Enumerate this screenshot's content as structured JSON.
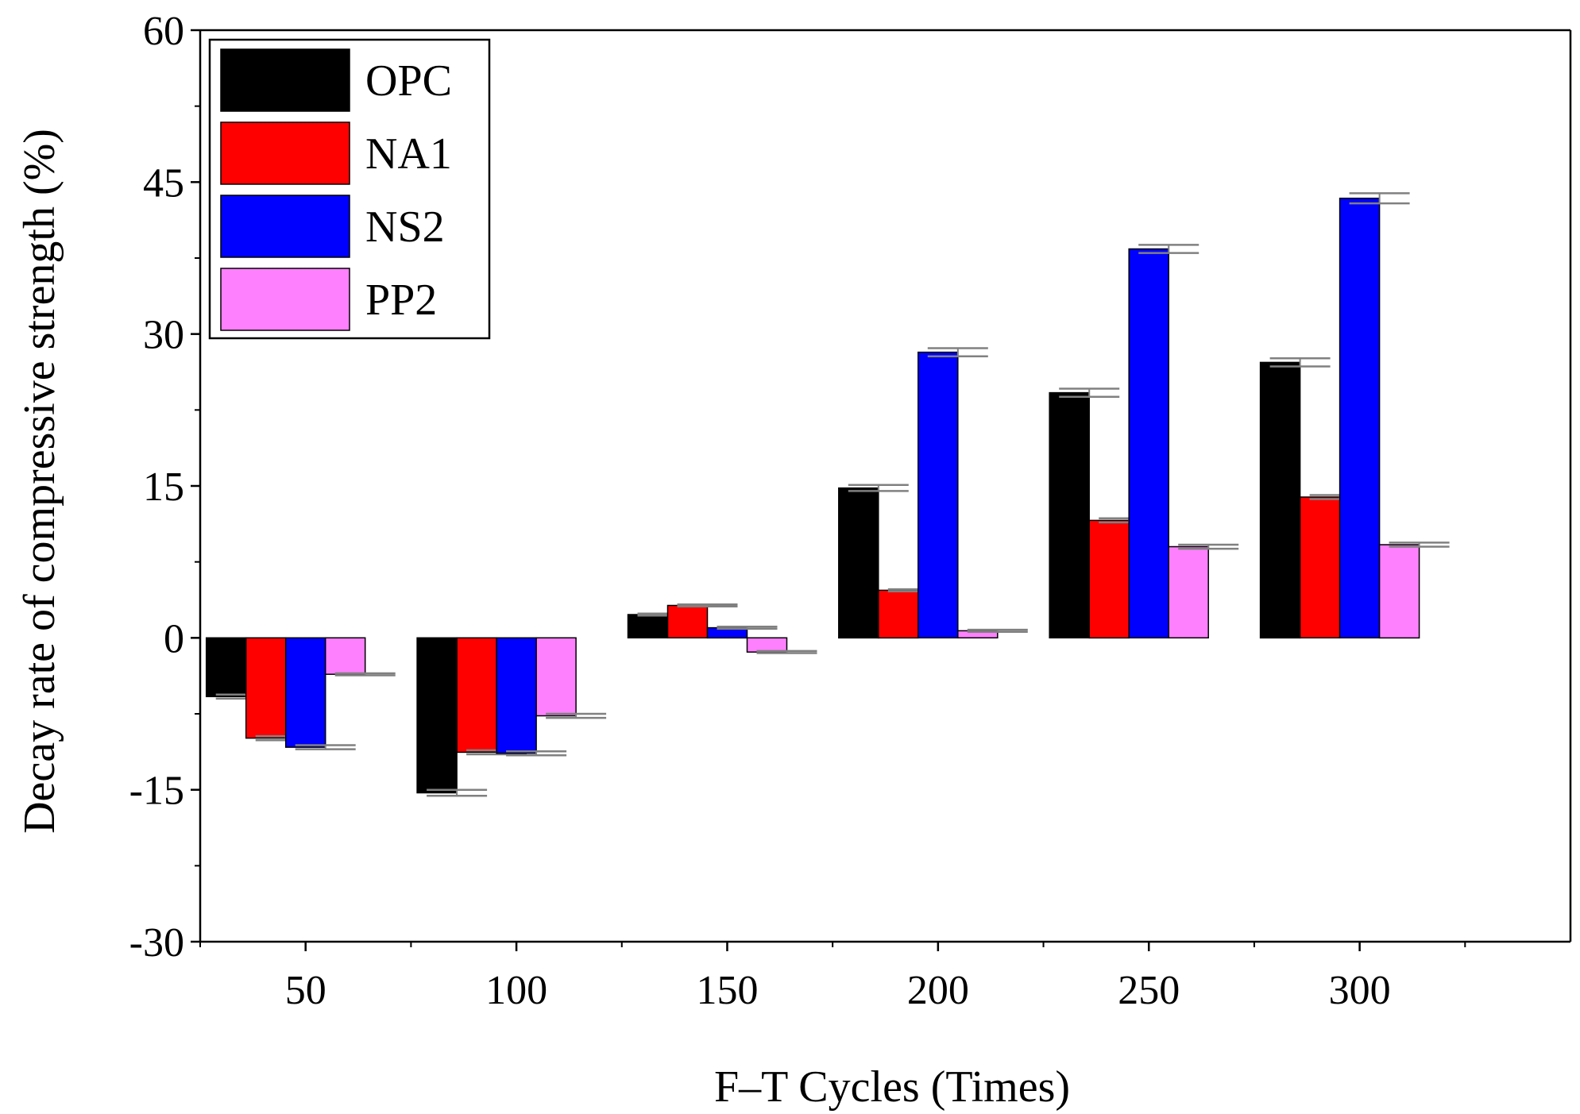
{
  "chart_data": {
    "type": "bar",
    "xlabel": "F–T Cycles (Times)",
    "ylabel": "Decay rate of compressive strength (%)",
    "ylim": [
      -30,
      60
    ],
    "yticks": [
      -30,
      -15,
      0,
      15,
      30,
      45,
      60
    ],
    "categories": [
      "50",
      "100",
      "150",
      "200",
      "250",
      "300"
    ],
    "legend_position": "top-left",
    "grid": false,
    "series": [
      {
        "name": "OPC",
        "color": "#000000",
        "values": [
          -5.8,
          -15.3,
          2.3,
          14.8,
          24.2,
          27.2
        ],
        "errors": [
          0.2,
          0.3,
          0.1,
          0.3,
          0.4,
          0.4
        ]
      },
      {
        "name": "NA1",
        "color": "#ff0000",
        "values": [
          -9.9,
          -11.3,
          3.2,
          4.7,
          11.6,
          13.9
        ],
        "errors": [
          0.2,
          0.2,
          0.1,
          0.1,
          0.2,
          0.2
        ]
      },
      {
        "name": "NS2",
        "color": "#0000ff",
        "values": [
          -10.8,
          -11.4,
          1.0,
          28.2,
          38.4,
          43.4
        ],
        "errors": [
          0.2,
          0.2,
          0.1,
          0.4,
          0.4,
          0.5
        ]
      },
      {
        "name": "PP2",
        "color": "#ff80ff",
        "values": [
          -3.6,
          -7.7,
          -1.4,
          0.7,
          9.0,
          9.2
        ],
        "errors": [
          0.1,
          0.2,
          0.1,
          0.1,
          0.2,
          0.2
        ]
      }
    ]
  }
}
